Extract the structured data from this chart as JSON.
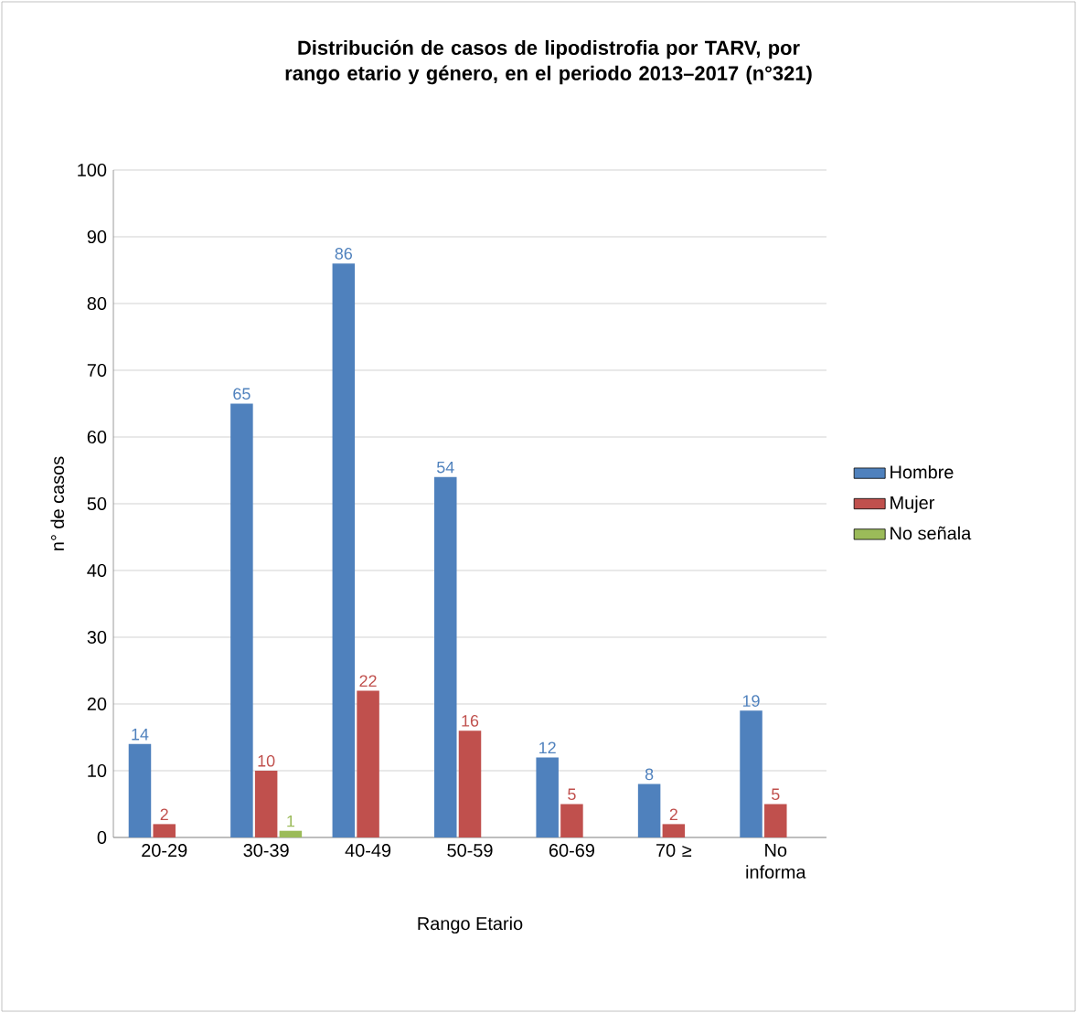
{
  "chart_data": {
    "type": "bar",
    "title": "Distribución de casos de lipodistrofia por TARV, por  rango etario y género, en el periodo 2013–2017  (n°321)",
    "xlabel": "Rango Etario",
    "ylabel": "n° de casos",
    "categories": [
      "20-29",
      "30-39",
      "40-49",
      "50-59",
      "60-69",
      "70 ≥",
      "No informa"
    ],
    "series": [
      {
        "name": "Hombre",
        "color": "#4f81bd",
        "values": [
          14,
          65,
          86,
          54,
          12,
          8,
          19
        ]
      },
      {
        "name": "Mujer",
        "color": "#c0504d",
        "values": [
          2,
          10,
          22,
          16,
          5,
          2,
          5
        ]
      },
      {
        "name": "No señala",
        "color": "#9bbb59",
        "values": [
          null,
          1,
          null,
          null,
          null,
          null,
          null
        ]
      }
    ],
    "ylim": [
      0,
      100
    ],
    "yticks": [
      0,
      10,
      20,
      30,
      40,
      50,
      60,
      70,
      80,
      90,
      100
    ],
    "grid": "y",
    "legend": "right",
    "data_labels": true
  }
}
